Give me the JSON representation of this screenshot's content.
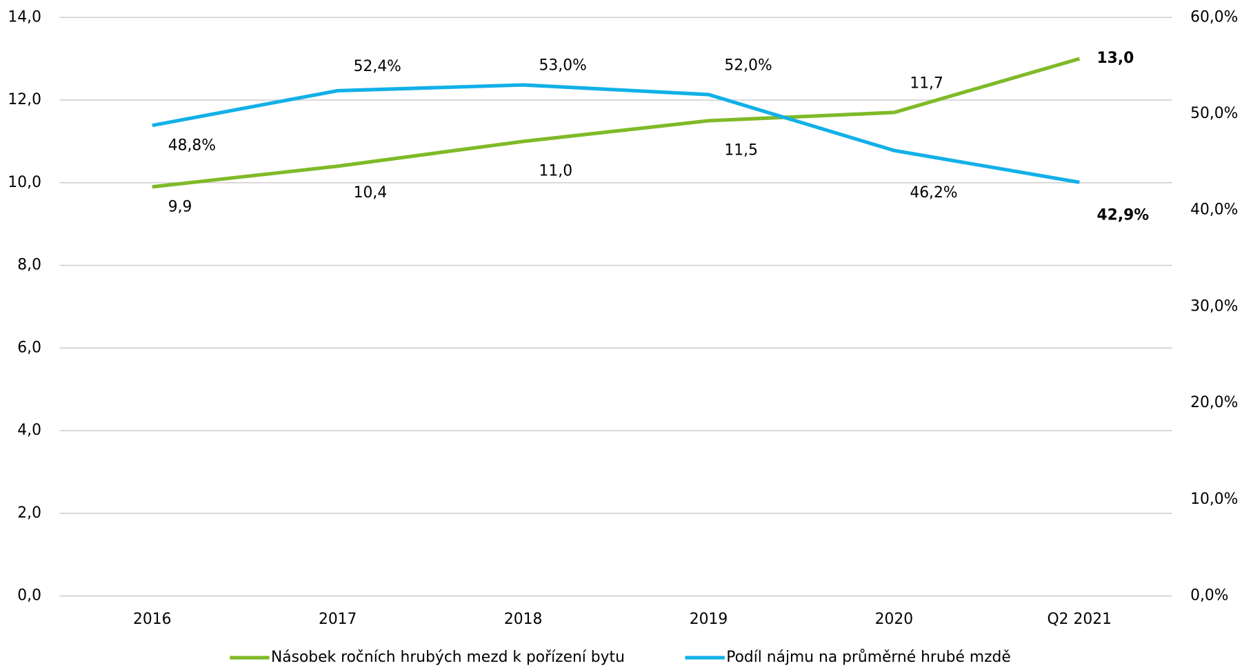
{
  "chart_data": {
    "type": "line",
    "categories": [
      "2016",
      "2017",
      "2018",
      "2019",
      "2020",
      "Q2 2021"
    ],
    "series": [
      {
        "name": "Násobek ročních hrubých mezd k pořízení bytu",
        "color": "#7fba27",
        "values": [
          9.9,
          10.4,
          11.0,
          11.5,
          11.7,
          13.0
        ],
        "value_labels": [
          "9,9",
          "10,4",
          "11,0",
          "11,5",
          "11,7",
          "13,0"
        ]
      },
      {
        "name": "Podíl nájmu na průměrné hrubé mzdě",
        "color": "#12b0e8",
        "axis": "y2",
        "values": [
          48.8,
          52.4,
          53.0,
          52.0,
          46.2,
          42.9
        ],
        "value_labels": [
          "48,8%",
          "52,4%",
          "53,0%",
          "52,0%",
          "46,2%",
          "42,9%"
        ]
      }
    ],
    "ylim": [
      0,
      14
    ],
    "yticks": [
      {
        "value": 0,
        "label": "0,0"
      },
      {
        "value": 2,
        "label": "2,0"
      },
      {
        "value": 4,
        "label": "4,0"
      },
      {
        "value": 6,
        "label": "6,0"
      },
      {
        "value": 8,
        "label": "8,0"
      },
      {
        "value": 10,
        "label": "10,0"
      },
      {
        "value": 12,
        "label": "12,0"
      },
      {
        "value": 14,
        "label": "14,0"
      }
    ],
    "y2lim": [
      0,
      60
    ],
    "y2ticks": [
      {
        "value": 0,
        "label": "0,0%"
      },
      {
        "value": 10,
        "label": "10,0%"
      },
      {
        "value": 20,
        "label": "20,0%"
      },
      {
        "value": 30,
        "label": "30,0%"
      },
      {
        "value": 40,
        "label": "40,0%"
      },
      {
        "value": 50,
        "label": "50,0%"
      },
      {
        "value": 60,
        "label": "60,0%"
      }
    ],
    "grid": true,
    "legend": "bottom"
  }
}
